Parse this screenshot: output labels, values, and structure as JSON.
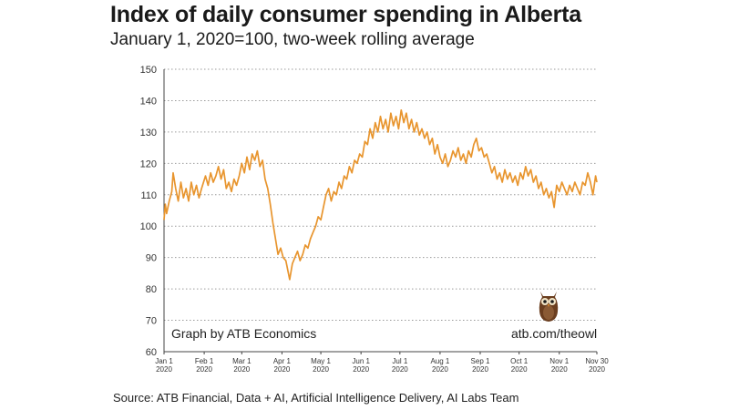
{
  "chart_data": {
    "type": "line",
    "title": "Index of daily consumer spending in Alberta",
    "subtitle": "January 1, 2020=100, two-week rolling average",
    "xlabel": "",
    "ylabel": "",
    "ylim": [
      60,
      150
    ],
    "yticks": [
      60,
      70,
      80,
      90,
      100,
      110,
      120,
      130,
      140,
      150
    ],
    "xticks": [
      {
        "date": "2020-01-01",
        "line1": "Jan 1",
        "line2": "2020"
      },
      {
        "date": "2020-02-01",
        "line1": "Feb 1",
        "line2": "2020"
      },
      {
        "date": "2020-03-01",
        "line1": "Mar 1",
        "line2": "2020"
      },
      {
        "date": "2020-04-01",
        "line1": "Apr 1",
        "line2": "2020"
      },
      {
        "date": "2020-05-01",
        "line1": "May 1",
        "line2": "2020"
      },
      {
        "date": "2020-06-01",
        "line1": "Jun 1",
        "line2": "2020"
      },
      {
        "date": "2020-07-01",
        "line1": "Jul 1",
        "line2": "2020"
      },
      {
        "date": "2020-08-01",
        "line1": "Aug 1",
        "line2": "2020"
      },
      {
        "date": "2020-09-01",
        "line1": "Sep 1",
        "line2": "2020"
      },
      {
        "date": "2020-10-01",
        "line1": "Oct 1",
        "line2": "2020"
      },
      {
        "date": "2020-11-01",
        "line1": "Nov 1",
        "line2": "2020"
      },
      {
        "date": "2020-11-30",
        "line1": "Nov 30",
        "line2": "2020"
      }
    ],
    "grid": "horizontal-dotted",
    "series": [
      {
        "color": "#E8952E",
        "points": [
          [
            "2020-01-01",
            102
          ],
          [
            "2020-01-02",
            107
          ],
          [
            "2020-01-03",
            104
          ],
          [
            "2020-01-05",
            108
          ],
          [
            "2020-01-07",
            111
          ],
          [
            "2020-01-08",
            117
          ],
          [
            "2020-01-10",
            112
          ],
          [
            "2020-01-12",
            108
          ],
          [
            "2020-01-14",
            114
          ],
          [
            "2020-01-16",
            109
          ],
          [
            "2020-01-18",
            112
          ],
          [
            "2020-01-20",
            108
          ],
          [
            "2020-01-22",
            114
          ],
          [
            "2020-01-24",
            110
          ],
          [
            "2020-01-26",
            113
          ],
          [
            "2020-01-28",
            109
          ],
          [
            "2020-01-30",
            112
          ],
          [
            "2020-02-02",
            116
          ],
          [
            "2020-02-04",
            113
          ],
          [
            "2020-02-06",
            117
          ],
          [
            "2020-02-08",
            114
          ],
          [
            "2020-02-10",
            116
          ],
          [
            "2020-02-12",
            119
          ],
          [
            "2020-02-14",
            115
          ],
          [
            "2020-02-16",
            118
          ],
          [
            "2020-02-18",
            112
          ],
          [
            "2020-02-20",
            114
          ],
          [
            "2020-02-22",
            111
          ],
          [
            "2020-02-24",
            115
          ],
          [
            "2020-02-26",
            113
          ],
          [
            "2020-02-28",
            116
          ],
          [
            "2020-03-01",
            120
          ],
          [
            "2020-03-03",
            117
          ],
          [
            "2020-03-05",
            122
          ],
          [
            "2020-03-07",
            118
          ],
          [
            "2020-03-09",
            123
          ],
          [
            "2020-03-11",
            121
          ],
          [
            "2020-03-13",
            124
          ],
          [
            "2020-03-15",
            119
          ],
          [
            "2020-03-17",
            121
          ],
          [
            "2020-03-19",
            115
          ],
          [
            "2020-03-21",
            112
          ],
          [
            "2020-03-23",
            107
          ],
          [
            "2020-03-25",
            101
          ],
          [
            "2020-03-27",
            96
          ],
          [
            "2020-03-29",
            91
          ],
          [
            "2020-03-31",
            93
          ],
          [
            "2020-04-02",
            90
          ],
          [
            "2020-04-04",
            89
          ],
          [
            "2020-04-06",
            85
          ],
          [
            "2020-04-07",
            83
          ],
          [
            "2020-04-09",
            88
          ],
          [
            "2020-04-11",
            90
          ],
          [
            "2020-04-13",
            92
          ],
          [
            "2020-04-15",
            89
          ],
          [
            "2020-04-17",
            91
          ],
          [
            "2020-04-19",
            94
          ],
          [
            "2020-04-21",
            93
          ],
          [
            "2020-04-23",
            96
          ],
          [
            "2020-04-25",
            98
          ],
          [
            "2020-04-27",
            100
          ],
          [
            "2020-04-29",
            103
          ],
          [
            "2020-05-01",
            102
          ],
          [
            "2020-05-03",
            106
          ],
          [
            "2020-05-05",
            110
          ],
          [
            "2020-05-07",
            112
          ],
          [
            "2020-05-09",
            108
          ],
          [
            "2020-05-11",
            111
          ],
          [
            "2020-05-13",
            110
          ],
          [
            "2020-05-15",
            114
          ],
          [
            "2020-05-17",
            112
          ],
          [
            "2020-05-19",
            116
          ],
          [
            "2020-05-21",
            115
          ],
          [
            "2020-05-23",
            119
          ],
          [
            "2020-05-25",
            117
          ],
          [
            "2020-05-27",
            121
          ],
          [
            "2020-05-29",
            120
          ],
          [
            "2020-05-31",
            123
          ],
          [
            "2020-06-02",
            122
          ],
          [
            "2020-06-04",
            127
          ],
          [
            "2020-06-06",
            126
          ],
          [
            "2020-06-08",
            131
          ],
          [
            "2020-06-10",
            128
          ],
          [
            "2020-06-12",
            133
          ],
          [
            "2020-06-14",
            130
          ],
          [
            "2020-06-16",
            135
          ],
          [
            "2020-06-18",
            131
          ],
          [
            "2020-06-20",
            134
          ],
          [
            "2020-06-22",
            130
          ],
          [
            "2020-06-24",
            136
          ],
          [
            "2020-06-26",
            132
          ],
          [
            "2020-06-28",
            135
          ],
          [
            "2020-06-30",
            131
          ],
          [
            "2020-07-02",
            137
          ],
          [
            "2020-07-04",
            133
          ],
          [
            "2020-07-06",
            136
          ],
          [
            "2020-07-08",
            131
          ],
          [
            "2020-07-10",
            134
          ],
          [
            "2020-07-12",
            130
          ],
          [
            "2020-07-14",
            133
          ],
          [
            "2020-07-16",
            129
          ],
          [
            "2020-07-18",
            131
          ],
          [
            "2020-07-20",
            128
          ],
          [
            "2020-07-22",
            130
          ],
          [
            "2020-07-24",
            126
          ],
          [
            "2020-07-26",
            128
          ],
          [
            "2020-07-28",
            123
          ],
          [
            "2020-07-30",
            126
          ],
          [
            "2020-08-01",
            122
          ],
          [
            "2020-08-03",
            120
          ],
          [
            "2020-08-05",
            123
          ],
          [
            "2020-08-07",
            119
          ],
          [
            "2020-08-09",
            121
          ],
          [
            "2020-08-11",
            124
          ],
          [
            "2020-08-13",
            122
          ],
          [
            "2020-08-15",
            125
          ],
          [
            "2020-08-17",
            121
          ],
          [
            "2020-08-19",
            123
          ],
          [
            "2020-08-21",
            120
          ],
          [
            "2020-08-23",
            124
          ],
          [
            "2020-08-25",
            122
          ],
          [
            "2020-08-27",
            126
          ],
          [
            "2020-08-29",
            128
          ],
          [
            "2020-08-31",
            124
          ],
          [
            "2020-09-02",
            125
          ],
          [
            "2020-09-04",
            122
          ],
          [
            "2020-09-06",
            123
          ],
          [
            "2020-09-08",
            120
          ],
          [
            "2020-09-10",
            117
          ],
          [
            "2020-09-12",
            119
          ],
          [
            "2020-09-14",
            115
          ],
          [
            "2020-09-16",
            117
          ],
          [
            "2020-09-18",
            114
          ],
          [
            "2020-09-20",
            118
          ],
          [
            "2020-09-22",
            115
          ],
          [
            "2020-09-24",
            117
          ],
          [
            "2020-09-26",
            114
          ],
          [
            "2020-09-28",
            116
          ],
          [
            "2020-09-30",
            113
          ],
          [
            "2020-10-02",
            117
          ],
          [
            "2020-10-04",
            115
          ],
          [
            "2020-10-06",
            119
          ],
          [
            "2020-10-08",
            116
          ],
          [
            "2020-10-10",
            118
          ],
          [
            "2020-10-12",
            114
          ],
          [
            "2020-10-14",
            116
          ],
          [
            "2020-10-16",
            112
          ],
          [
            "2020-10-18",
            114
          ],
          [
            "2020-10-20",
            110
          ],
          [
            "2020-10-22",
            112
          ],
          [
            "2020-10-24",
            109
          ],
          [
            "2020-10-26",
            111
          ],
          [
            "2020-10-28",
            106
          ],
          [
            "2020-10-30",
            113
          ],
          [
            "2020-11-01",
            111
          ],
          [
            "2020-11-03",
            114
          ],
          [
            "2020-11-05",
            112
          ],
          [
            "2020-11-07",
            110
          ],
          [
            "2020-11-09",
            113
          ],
          [
            "2020-11-11",
            111
          ],
          [
            "2020-11-13",
            114
          ],
          [
            "2020-11-15",
            112
          ],
          [
            "2020-11-17",
            110
          ],
          [
            "2020-11-19",
            114
          ],
          [
            "2020-11-21",
            113
          ],
          [
            "2020-11-23",
            117
          ],
          [
            "2020-11-25",
            114
          ],
          [
            "2020-11-27",
            110
          ],
          [
            "2020-11-29",
            116
          ],
          [
            "2020-11-30",
            114
          ]
        ]
      }
    ]
  },
  "credit": "Graph by ATB Economics",
  "url": "atb.com/theowl",
  "source": "Source:  ATB Financial, Data + AI, Artificial Intelligence Delivery, AI Labs Team",
  "icons": {
    "owl": "owl-mascot-icon"
  }
}
